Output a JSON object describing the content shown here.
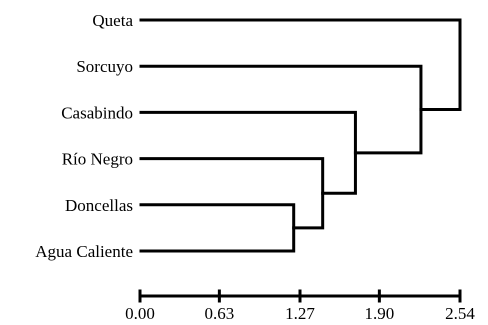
{
  "dendrogram": {
    "leaves": [
      "Queta",
      "Sorcuyo",
      "Casabindo",
      "Río Negro",
      "Doncellas",
      "Agua Caliente"
    ],
    "merges": [
      {
        "a": "Doncellas",
        "b": "Agua Caliente",
        "height": 1.22
      },
      {
        "a": "Río Negro",
        "b": "Doncellas + Agua Caliente",
        "height": 1.45
      },
      {
        "a": "Casabindo",
        "b": "Río Negro + Doncellas + Agua Caliente",
        "height": 1.71
      },
      {
        "a": "Sorcuyo",
        "b": "Casabindo + Río Negro + Doncellas + Agua Caliente",
        "height": 2.23
      },
      {
        "a": "Queta",
        "b": "Sorcuyo + Casabindo + Río Negro + Doncellas + Agua Caliente",
        "height": 2.54
      }
    ]
  },
  "axis": {
    "ticks": [
      0.0,
      0.63,
      1.27,
      1.9,
      2.54
    ],
    "tick_labels": [
      "0.00",
      "0.63",
      "1.27",
      "1.90",
      "2.54"
    ],
    "range": [
      0,
      2.54
    ]
  },
  "colors": {
    "line": "#000000",
    "background": "#ffffff"
  }
}
